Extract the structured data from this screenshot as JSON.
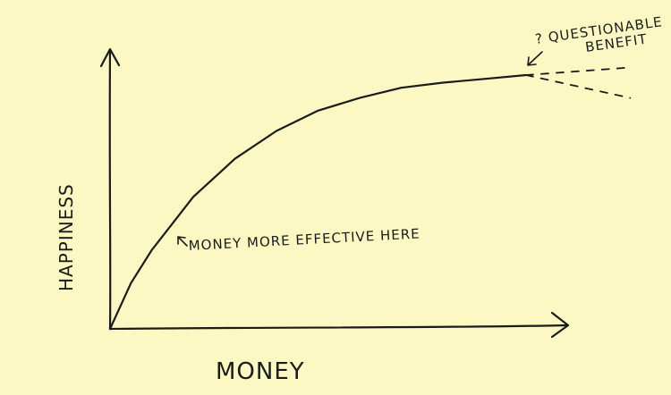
{
  "chart_data": {
    "type": "line",
    "xlabel": "MONEY",
    "ylabel": "HAPPINESS",
    "grid": false,
    "series": [
      {
        "x": [
          0,
          5,
          10,
          20,
          30,
          40,
          50,
          60,
          70,
          80,
          90,
          100
        ],
        "y": [
          0,
          18,
          31,
          52,
          67,
          78,
          86,
          91,
          95,
          97,
          98.5,
          100
        ]
      }
    ],
    "uncertain_extension": {
      "x": [
        100,
        125
      ],
      "upper_y": [
        100,
        103
      ],
      "lower_y": [
        100,
        91
      ]
    },
    "annotations": [
      {
        "text": "MONEY MORE EFFECTIVE HERE",
        "arrow": "up-left"
      },
      {
        "text_line1": "? QUESTIONABLE",
        "text_line2": "BENEFIT",
        "arrow": "down-left"
      }
    ]
  },
  "colors": {
    "background": "#fbf8c4",
    "ink": "#1b1b18"
  }
}
